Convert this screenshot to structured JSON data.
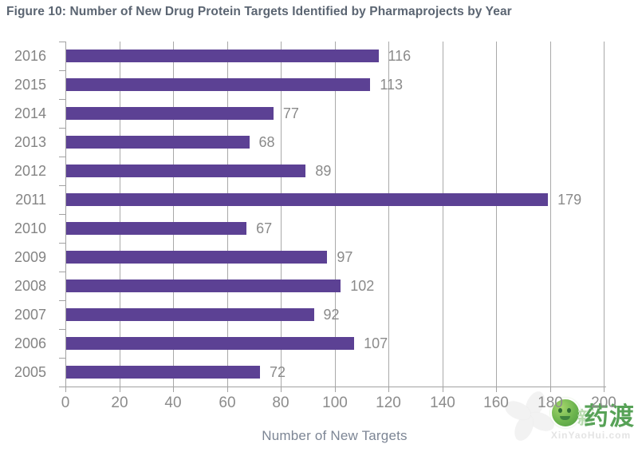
{
  "figure": {
    "title": "Figure 10: Number of New Drug Protein Targets Identified by Pharmaprojects by Year"
  },
  "chart_data": {
    "type": "bar",
    "orientation": "horizontal",
    "title": "Figure 10: Number of New Drug Protein Targets Identified by Pharmaprojects by Year",
    "categories": [
      "2016",
      "2015",
      "2014",
      "2013",
      "2012",
      "2011",
      "2010",
      "2009",
      "2008",
      "2007",
      "2006",
      "2005"
    ],
    "values": [
      116,
      113,
      77,
      68,
      89,
      179,
      67,
      97,
      102,
      92,
      107,
      72
    ],
    "data_labels": [
      116,
      113,
      77,
      68,
      89,
      179,
      67,
      97,
      102,
      92,
      107,
      72
    ],
    "xlabel": "Number of New Targets",
    "ylabel": "",
    "xlim": [
      0,
      200
    ],
    "x_ticks": [
      0,
      20,
      40,
      60,
      80,
      100,
      120,
      140,
      160,
      180,
      200
    ],
    "grid": "vertical-gridlines-on",
    "legend": "none",
    "bar_color": "#5c4194",
    "grid_color": "#a9a9a9",
    "label_color": "#8a8a8a",
    "title_color": "#5b6572"
  },
  "watermark": {
    "cn_text": "药渡",
    "cn_text_faint": "新",
    "site_text": "XinYaoHui.com",
    "green": "#57a257"
  }
}
